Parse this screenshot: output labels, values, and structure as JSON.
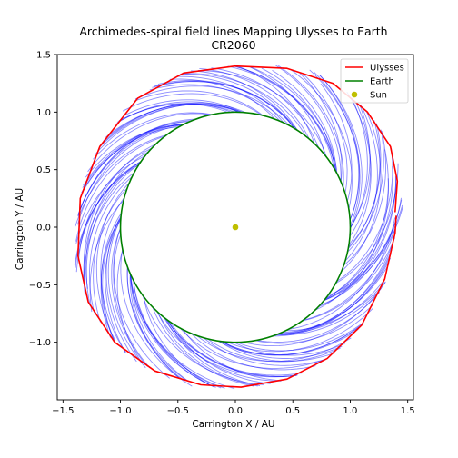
{
  "chart_data": {
    "type": "line",
    "title": "Archimedes-spiral field lines Mapping Ulysses to Earth",
    "subtitle": "CR2060",
    "xlabel": "Carrington X / AU",
    "ylabel": "Carrington Y / AU",
    "xlim": [
      -1.55,
      1.55
    ],
    "ylim": [
      -1.5,
      1.5
    ],
    "xticks": [
      -1.5,
      -1.0,
      -0.5,
      0.0,
      0.5,
      1.0,
      1.5
    ],
    "yticks": [
      -1.0,
      -0.5,
      0.0,
      0.5,
      1.0,
      1.5
    ],
    "xtick_labels": [
      "−1.5",
      "−1.0",
      "−0.5",
      "0.0",
      "0.5",
      "1.0",
      "1.5"
    ],
    "ytick_labels": [
      "−1.0",
      "−0.5",
      "0.0",
      "0.5",
      "1.0",
      "1.5"
    ],
    "grid": false,
    "legend_position": "top-right",
    "legend": [
      {
        "label": "Ulysses",
        "kind": "line",
        "color": "#ff0000"
      },
      {
        "label": "Earth",
        "kind": "line",
        "color": "#008000"
      },
      {
        "label": "Sun",
        "kind": "marker",
        "color": "#bfbf00"
      }
    ],
    "ulysses_orbit": {
      "color": "#ff0000",
      "points": [
        [
          1.39,
          0.13
        ],
        [
          1.41,
          0.4
        ],
        [
          1.35,
          0.7
        ],
        [
          1.15,
          1.0
        ],
        [
          0.85,
          1.25
        ],
        [
          0.45,
          1.38
        ],
        [
          0.0,
          1.4
        ],
        [
          -0.45,
          1.34
        ],
        [
          -0.85,
          1.12
        ],
        [
          -1.18,
          0.7
        ],
        [
          -1.35,
          0.25
        ],
        [
          -1.37,
          -0.25
        ],
        [
          -1.28,
          -0.65
        ],
        [
          -1.05,
          -1.0
        ],
        [
          -0.7,
          -1.25
        ],
        [
          -0.3,
          -1.37
        ],
        [
          0.05,
          -1.39
        ],
        [
          0.45,
          -1.32
        ],
        [
          0.8,
          -1.14
        ],
        [
          1.1,
          -0.85
        ],
        [
          1.3,
          -0.45
        ],
        [
          1.39,
          -0.05
        ],
        [
          1.4,
          0.1
        ]
      ]
    },
    "earth_orbit": {
      "radius": 1.0,
      "color": "#008000"
    },
    "sun": {
      "x": 0.0,
      "y": 0.0,
      "color": "#bfbf00"
    },
    "field_lines": {
      "color": "#0000ff",
      "count": 150,
      "r_start": 1.0,
      "arc_sweep_deg": 55
    }
  }
}
